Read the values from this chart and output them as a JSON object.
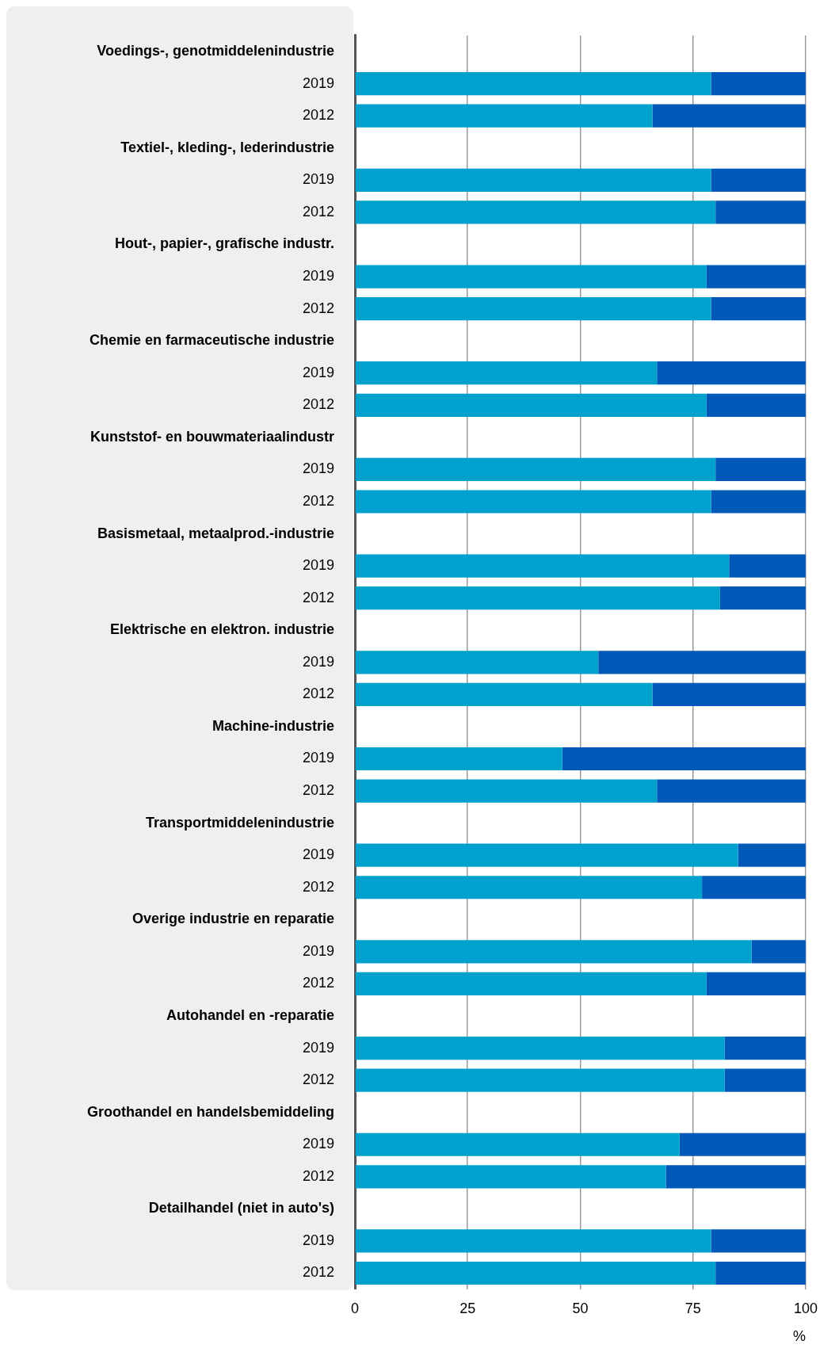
{
  "chart_data": {
    "type": "bar",
    "orientation": "horizontal",
    "stacked": true,
    "categories": [
      "Voedings-, genotmiddelenindustrie",
      "2019",
      "2012",
      "Textiel-, kleding-, lederindustrie",
      "2019",
      "2012",
      "Hout-, papier-, grafische industr.",
      "2019",
      "2012",
      "Chemie en farmaceutische industrie",
      "2019",
      "2012",
      "Kunststof- en bouwmateriaalindustr",
      "2019",
      "2012",
      "Basismetaal, metaalprod.-industrie",
      "2019",
      "2012",
      "Elektrische en elektron. industrie",
      "2019",
      "2012",
      "Machine-industrie",
      "2019",
      "2012",
      "Transportmiddelenindustrie",
      "2019",
      "2012",
      "Overige industrie en reparatie",
      "2019",
      "2012",
      "Autohandel en -reparatie",
      "2019",
      "2012",
      "Groothandel en handelsbemiddeling",
      "2019",
      "2012",
      "Detailhandel (niet in auto's)",
      "2019",
      "2012"
    ],
    "series": [
      {
        "color": "#00a1cd",
        "values": [
          null,
          79,
          66,
          null,
          79,
          80,
          null,
          78,
          79,
          null,
          67,
          78,
          null,
          80,
          79,
          null,
          83,
          81,
          null,
          54,
          66,
          null,
          46,
          67,
          null,
          85,
          77,
          null,
          88,
          78,
          null,
          82,
          82,
          null,
          72,
          69,
          null,
          79,
          80
        ]
      },
      {
        "color": "#0058b8",
        "values": [
          null,
          21,
          34,
          null,
          21,
          20,
          null,
          22,
          21,
          null,
          33,
          22,
          null,
          20,
          21,
          null,
          17,
          19,
          null,
          46,
          34,
          null,
          54,
          33,
          null,
          15,
          23,
          null,
          12,
          22,
          null,
          18,
          18,
          null,
          28,
          31,
          null,
          21,
          20
        ]
      }
    ],
    "xlim": [
      0,
      100
    ],
    "xticks": [
      0,
      25,
      50,
      75,
      100
    ],
    "xlabel": "%",
    "grid": "x",
    "legend": false
  }
}
